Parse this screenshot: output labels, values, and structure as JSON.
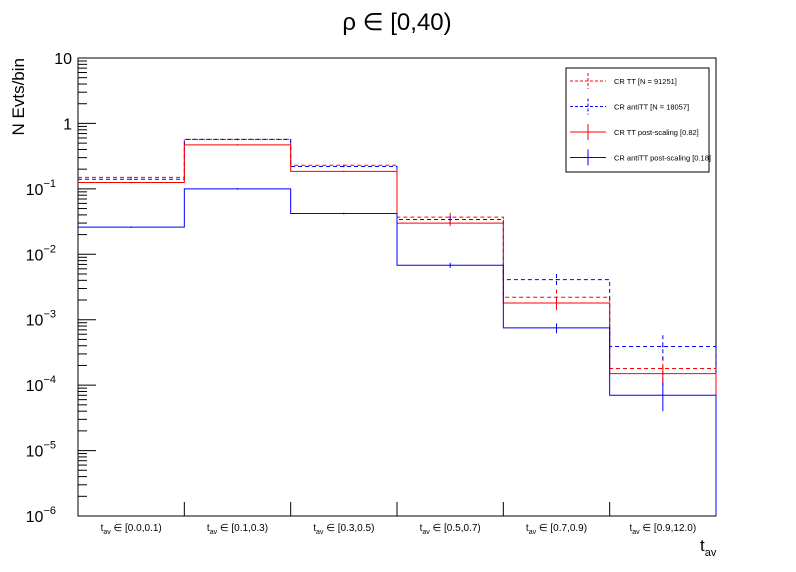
{
  "chart_data": {
    "type": "step",
    "title": "ρ ∈ [0,40)",
    "ylabel": "N Evts/bin",
    "xlabel": {
      "main": "t",
      "sub": "av"
    },
    "y_scale": "log",
    "ylim": [
      1e-06,
      10
    ],
    "y_ticks": [
      {
        "value": 10,
        "label": "10",
        "exp": ""
      },
      {
        "value": 1,
        "label": "1",
        "exp": ""
      },
      {
        "value": 0.1,
        "label": "10",
        "exp": "−1"
      },
      {
        "value": 0.01,
        "label": "10",
        "exp": "−2"
      },
      {
        "value": 0.001,
        "label": "10",
        "exp": "−3"
      },
      {
        "value": 0.0001,
        "label": "10",
        "exp": "−4"
      },
      {
        "value": 1e-05,
        "label": "10",
        "exp": "−5"
      },
      {
        "value": 1e-06,
        "label": "10",
        "exp": "−6"
      }
    ],
    "categories": [
      {
        "sub": "av",
        "range": "∈ [0.0,0.1)"
      },
      {
        "sub": "av",
        "range": "∈ [0.1,0.3)"
      },
      {
        "sub": "av",
        "range": "∈ [0.3,0.5)"
      },
      {
        "sub": "av",
        "range": "∈ [0.5,0.7)"
      },
      {
        "sub": "av",
        "range": "∈ [0.7,0.9)"
      },
      {
        "sub": "av",
        "range": "∈ [0.9,12.0)"
      }
    ],
    "category_prefix": "t",
    "series": [
      {
        "name": "CR TT [N = 91251]",
        "color": "#ff0000",
        "dashed": true,
        "values": [
          0.15,
          0.57,
          0.23,
          0.037,
          0.0022,
          0.00018
        ],
        "err_low": [
          0.149,
          0.568,
          0.228,
          0.031,
          0.0016,
          0.0001
        ],
        "err_high": [
          0.151,
          0.572,
          0.232,
          0.043,
          0.0029,
          0.00027
        ]
      },
      {
        "name": "CR antiTT [N = 18057]",
        "color": "#0000ff",
        "dashed": true,
        "values": [
          0.14,
          0.57,
          0.22,
          0.034,
          0.0041,
          0.00039
        ],
        "err_low": [
          0.139,
          0.568,
          0.218,
          0.03,
          0.0034,
          0.00022
        ],
        "err_high": [
          0.141,
          0.572,
          0.222,
          0.038,
          0.005,
          0.00058
        ]
      },
      {
        "name": "CR TT post-scaling [0.82]",
        "color": "#ff0000",
        "dashed": false,
        "values": [
          0.125,
          0.47,
          0.185,
          0.03,
          0.0018,
          0.00015
        ],
        "err_low": [
          0.124,
          0.468,
          0.183,
          0.027,
          0.0014,
          0.0001
        ],
        "err_high": [
          0.126,
          0.472,
          0.187,
          0.033,
          0.0022,
          0.0002
        ]
      },
      {
        "name": "CR antiTT post-scaling [0.18]",
        "color": "#0000ff",
        "dashed": false,
        "values": [
          0.026,
          0.1,
          0.042,
          0.0068,
          0.00075,
          7e-05
        ],
        "err_low": [
          0.0258,
          0.099,
          0.041,
          0.0062,
          0.00062,
          4e-05
        ],
        "err_high": [
          0.0262,
          0.101,
          0.043,
          0.0074,
          0.00088,
          0.00011
        ]
      }
    ],
    "legend_position": "top-right",
    "grid": false
  }
}
